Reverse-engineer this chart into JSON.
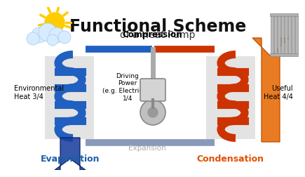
{
  "title": "Functional Scheme",
  "subtitle": "of a Heat Pump",
  "title_fontsize": 17,
  "subtitle_fontsize": 10,
  "bg_color": "#ffffff",
  "labels": {
    "compression": "Compression",
    "expansion": "Expansion",
    "evaporation": "Evaporation",
    "condensation": "Condensation",
    "env_heat": "Environmental\nHeat 3/4",
    "useful_heat": "Useful\nHeat 4/4",
    "driving_power": "Driving\nPower\n(e.g. Electricity)\n1/4"
  },
  "label_colors": {
    "compression": "#000000",
    "expansion": "#aaaaaa",
    "evaporation": "#1a5fa8",
    "condensation": "#e05000",
    "env_heat": "#000000",
    "useful_heat": "#000000",
    "driving_power": "#000000"
  },
  "coil_left_color": "#2060c0",
  "coil_right_color": "#cc3300",
  "sun_color": "#ffcc00",
  "cloud_color": "#d8ecff"
}
